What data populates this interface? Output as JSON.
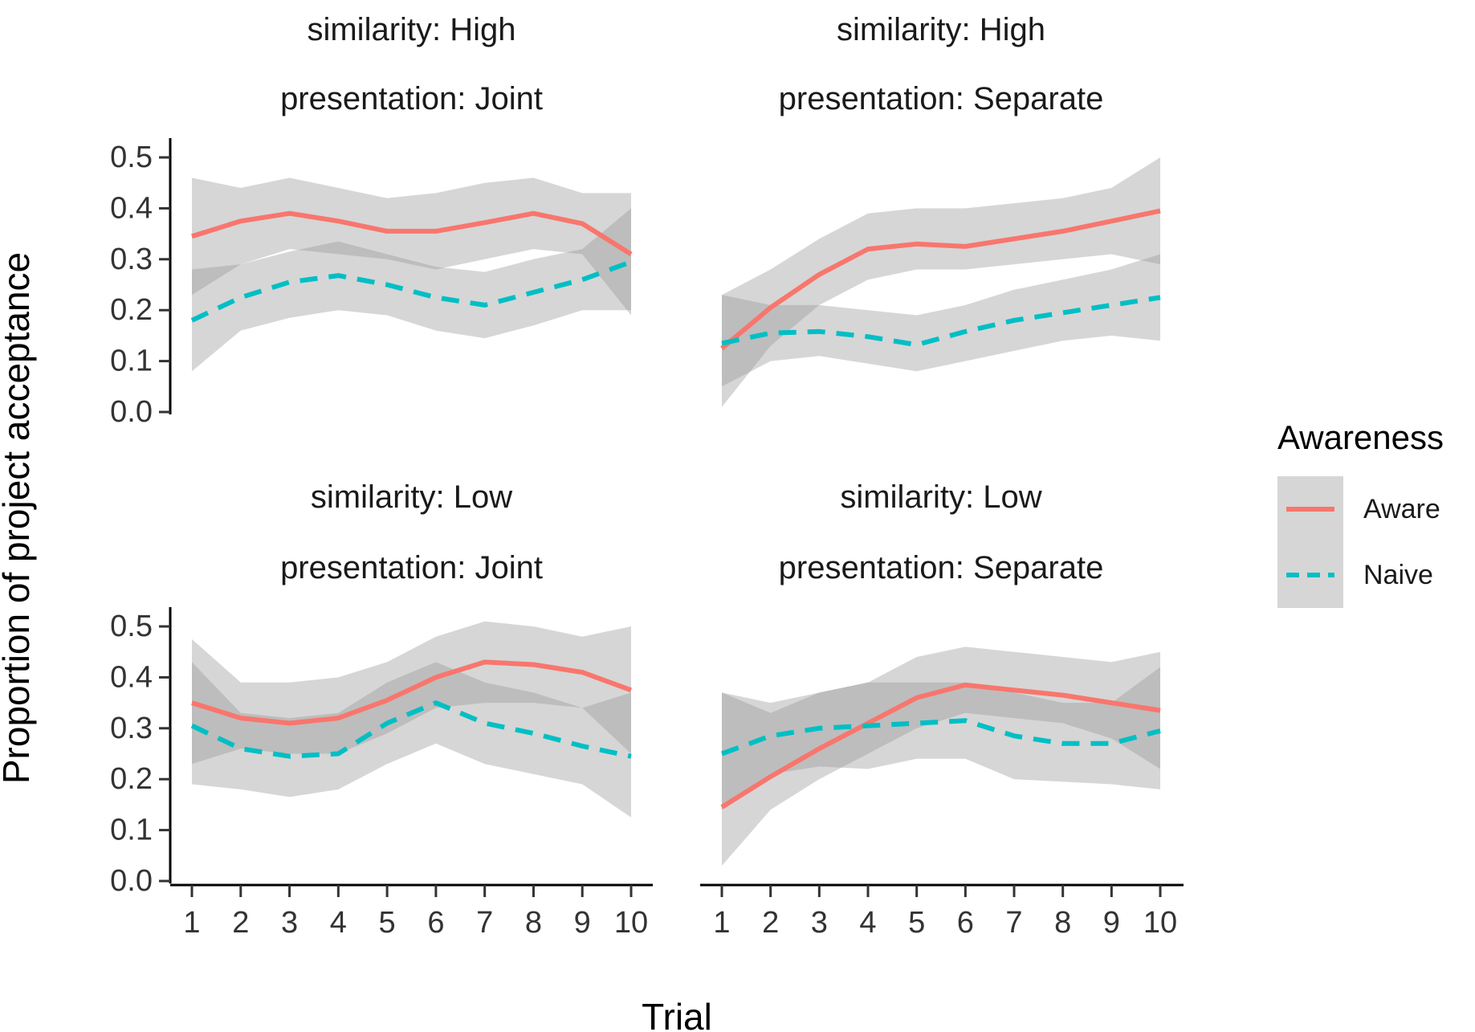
{
  "chart_data": {
    "type": "line",
    "xlabel": "Trial",
    "ylabel": "Proportion of project acceptance",
    "x": [
      1,
      2,
      3,
      4,
      5,
      6,
      7,
      8,
      9,
      10
    ],
    "xlim": [
      1,
      10
    ],
    "ylim": [
      0,
      0.5
    ],
    "yticks": [
      "0.0",
      "0.1",
      "0.2",
      "0.3",
      "0.4",
      "0.5"
    ],
    "xticks": [
      "1",
      "2",
      "3",
      "4",
      "5",
      "6",
      "7",
      "8",
      "9",
      "10"
    ],
    "grid": false,
    "legend": {
      "title": "Awareness",
      "position": "right",
      "entries": [
        {
          "label": "Aware",
          "color": "#F8766D",
          "dash": "solid"
        },
        {
          "label": "Naive",
          "color": "#00BFC4",
          "dash": "dashed"
        }
      ]
    },
    "ribbon_color": "#999999",
    "facets": [
      {
        "strip": [
          "similarity: High",
          "presentation: Joint"
        ],
        "series": [
          {
            "name": "Aware",
            "values": [
              0.345,
              0.375,
              0.39,
              0.375,
              0.355,
              0.355,
              0.372,
              0.39,
              0.37,
              0.31
            ],
            "lower": [
              0.23,
              0.29,
              0.32,
              0.31,
              0.3,
              0.28,
              0.3,
              0.32,
              0.31,
              0.19
            ],
            "upper": [
              0.46,
              0.44,
              0.46,
              0.44,
              0.42,
              0.43,
              0.45,
              0.46,
              0.43,
              0.43
            ]
          },
          {
            "name": "Naive",
            "values": [
              0.18,
              0.225,
              0.255,
              0.268,
              0.25,
              0.225,
              0.21,
              0.235,
              0.26,
              0.295
            ],
            "lower": [
              0.08,
              0.16,
              0.185,
              0.2,
              0.19,
              0.16,
              0.145,
              0.17,
              0.2,
              0.2
            ],
            "upper": [
              0.28,
              0.29,
              0.315,
              0.335,
              0.31,
              0.285,
              0.275,
              0.3,
              0.32,
              0.4
            ]
          }
        ]
      },
      {
        "strip": [
          "similarity: High",
          "presentation: Separate"
        ],
        "series": [
          {
            "name": "Aware",
            "values": [
              0.125,
              0.205,
              0.27,
              0.32,
              0.33,
              0.325,
              0.34,
              0.355,
              0.375,
              0.395
            ],
            "lower": [
              0.01,
              0.13,
              0.21,
              0.26,
              0.28,
              0.28,
              0.29,
              0.3,
              0.31,
              0.29
            ],
            "upper": [
              0.23,
              0.28,
              0.34,
              0.39,
              0.4,
              0.4,
              0.41,
              0.42,
              0.44,
              0.5
            ]
          },
          {
            "name": "Naive",
            "values": [
              0.135,
              0.155,
              0.158,
              0.148,
              0.132,
              0.158,
              0.18,
              0.195,
              0.21,
              0.225
            ],
            "lower": [
              0.05,
              0.1,
              0.11,
              0.095,
              0.08,
              0.1,
              0.12,
              0.14,
              0.15,
              0.14
            ],
            "upper": [
              0.23,
              0.21,
              0.21,
              0.2,
              0.19,
              0.21,
              0.24,
              0.26,
              0.28,
              0.31
            ]
          }
        ]
      },
      {
        "strip": [
          "similarity: Low",
          "presentation: Joint"
        ],
        "series": [
          {
            "name": "Aware",
            "values": [
              0.35,
              0.32,
              0.31,
              0.32,
              0.355,
              0.4,
              0.43,
              0.425,
              0.41,
              0.375
            ],
            "lower": [
              0.23,
              0.26,
              0.25,
              0.25,
              0.29,
              0.34,
              0.35,
              0.35,
              0.34,
              0.25
            ],
            "upper": [
              0.475,
              0.39,
              0.39,
              0.4,
              0.43,
              0.48,
              0.51,
              0.5,
              0.48,
              0.5
            ]
          },
          {
            "name": "Naive",
            "values": [
              0.305,
              0.26,
              0.245,
              0.25,
              0.31,
              0.35,
              0.31,
              0.29,
              0.265,
              0.245
            ],
            "lower": [
              0.19,
              0.18,
              0.165,
              0.18,
              0.23,
              0.27,
              0.23,
              0.21,
              0.19,
              0.125
            ],
            "upper": [
              0.43,
              0.33,
              0.32,
              0.33,
              0.39,
              0.43,
              0.39,
              0.37,
              0.34,
              0.37
            ]
          }
        ]
      },
      {
        "strip": [
          "similarity: Low",
          "presentation: Separate"
        ],
        "series": [
          {
            "name": "Aware",
            "values": [
              0.145,
              0.205,
              0.26,
              0.31,
              0.36,
              0.385,
              0.375,
              0.365,
              0.35,
              0.335
            ],
            "lower": [
              0.03,
              0.14,
              0.2,
              0.25,
              0.3,
              0.33,
              0.32,
              0.31,
              0.28,
              0.22
            ],
            "upper": [
              0.37,
              0.33,
              0.37,
              0.39,
              0.44,
              0.46,
              0.45,
              0.44,
              0.43,
              0.45
            ]
          },
          {
            "name": "Naive",
            "values": [
              0.25,
              0.285,
              0.3,
              0.305,
              0.31,
              0.315,
              0.285,
              0.27,
              0.27,
              0.295
            ],
            "lower": [
              0.14,
              0.21,
              0.225,
              0.22,
              0.24,
              0.24,
              0.2,
              0.195,
              0.19,
              0.18
            ],
            "upper": [
              0.37,
              0.35,
              0.37,
              0.39,
              0.39,
              0.39,
              0.37,
              0.35,
              0.35,
              0.42
            ]
          }
        ]
      }
    ]
  }
}
